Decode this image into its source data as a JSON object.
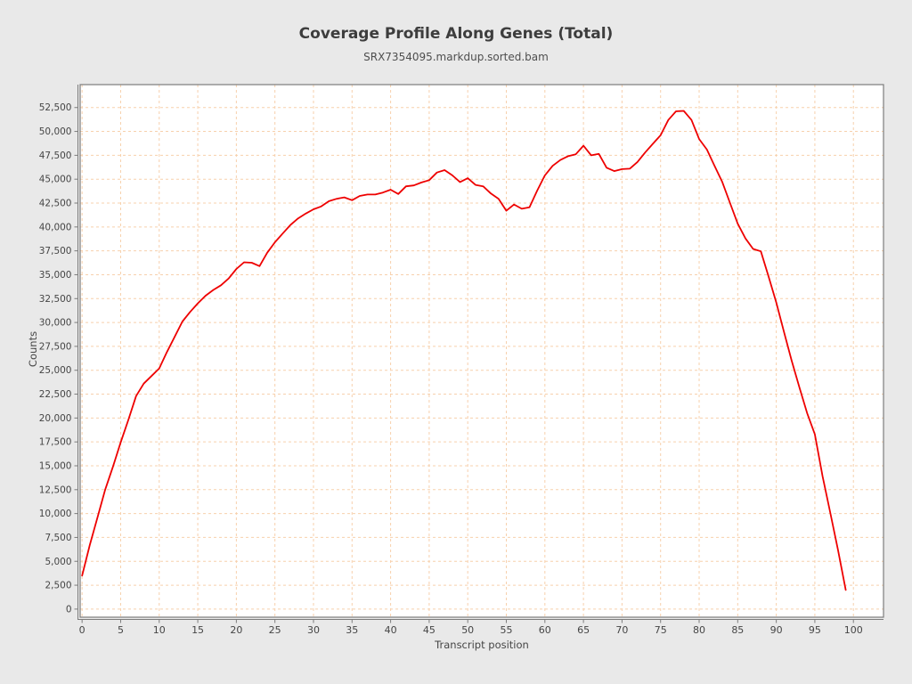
{
  "chart_data": {
    "type": "line",
    "title": "Coverage Profile Along Genes (Total)",
    "subtitle": "SRX7354095.markdup.sorted.bam",
    "xlabel": "Transcript position",
    "ylabel": "Counts",
    "grid": true,
    "legend": "none",
    "xlim": [
      -0.25,
      103.9
    ],
    "ylim": [
      -850,
      54900
    ],
    "x_ticks": [
      0,
      5,
      10,
      15,
      20,
      25,
      30,
      35,
      40,
      45,
      50,
      55,
      60,
      65,
      70,
      75,
      80,
      85,
      90,
      95,
      100
    ],
    "y_ticks": [
      0,
      2500,
      5000,
      7500,
      10000,
      12500,
      15000,
      17500,
      20000,
      22500,
      25000,
      27500,
      30000,
      32500,
      35000,
      37500,
      40000,
      42500,
      45000,
      47500,
      50000,
      52500
    ],
    "colors": {
      "series": "#ee0000",
      "grid": "#f7d0ac",
      "frame": "#7c7c7c",
      "background": "#e9e9e9",
      "plot_background": "#ffffff",
      "text": "#454545"
    },
    "series": [
      {
        "name": "SRX7354095.markdup.sorted.bam",
        "color": "#ee0000",
        "x": [
          0,
          1,
          2,
          3,
          4,
          5,
          6,
          7,
          8,
          9,
          10,
          11,
          12,
          13,
          14,
          15,
          16,
          17,
          18,
          19,
          20,
          21,
          22,
          23,
          24,
          25,
          26,
          27,
          28,
          29,
          30,
          31,
          32,
          33,
          34,
          35,
          36,
          37,
          38,
          39,
          40,
          41,
          42,
          43,
          44,
          45,
          46,
          47,
          48,
          49,
          50,
          51,
          52,
          53,
          54,
          55,
          56,
          57,
          58,
          59,
          60,
          61,
          62,
          63,
          64,
          65,
          66,
          67,
          68,
          69,
          70,
          71,
          72,
          73,
          74,
          75,
          76,
          77,
          78,
          79,
          80,
          81,
          82,
          83,
          84,
          85,
          86,
          87,
          88,
          89,
          90,
          91,
          92,
          93,
          94,
          95,
          96,
          97,
          98,
          99
        ],
        "values": [
          3500,
          6700,
          9600,
          12500,
          14900,
          17450,
          19800,
          22300,
          23600,
          24400,
          25200,
          26900,
          28500,
          30100,
          31100,
          32000,
          32800,
          33400,
          33900,
          34600,
          35600,
          36300,
          36250,
          35900,
          37300,
          38400,
          39300,
          40200,
          40900,
          41400,
          41850,
          42150,
          42700,
          42950,
          43100,
          42800,
          43250,
          43400,
          43400,
          43600,
          43900,
          43450,
          44250,
          44350,
          44650,
          44900,
          45700,
          45950,
          45400,
          44700,
          45100,
          44400,
          44250,
          43500,
          42950,
          41700,
          42350,
          41900,
          42050,
          43800,
          45400,
          46400,
          47000,
          47400,
          47600,
          48500,
          47500,
          47650,
          46200,
          45850,
          46050,
          46100,
          46800,
          47800,
          48700,
          49600,
          51200,
          52100,
          52150,
          51200,
          49200,
          48100,
          46400,
          44700,
          42500,
          40350,
          38800,
          37700,
          37450,
          34800,
          32100,
          29000,
          26000,
          23200,
          20500,
          18300,
          13900,
          10100,
          6200,
          2000
        ]
      }
    ]
  }
}
